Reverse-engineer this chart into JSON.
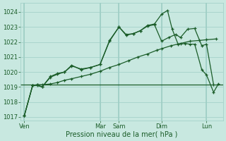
{
  "xlabel": "Pression niveau de la mer( hPa )",
  "bg_color": "#c8e8e0",
  "grid_color": "#9ecec5",
  "line_color": "#1a5c28",
  "tick_color": "#1a5c28",
  "ylim": [
    1016.75,
    1024.6
  ],
  "yticks": [
    1017,
    1018,
    1019,
    1020,
    1021,
    1022,
    1023,
    1024
  ],
  "x_tick_positions": [
    0,
    3.2,
    4.0,
    5.8,
    7.7
  ],
  "x_tick_labels": [
    "Ven",
    "Mar",
    "Sam",
    "Dim",
    "Lun"
  ],
  "vline_x": [
    0,
    3.2,
    4.0,
    5.8,
    7.7
  ],
  "hline_y": 1019.15,
  "line_straight_x": [
    0.0,
    0.35,
    0.55,
    0.75,
    1.1,
    1.4,
    1.7,
    2.0,
    2.4,
    2.8,
    3.2,
    3.6,
    4.0,
    4.4,
    4.8,
    5.2,
    5.6,
    5.8,
    6.2,
    6.6,
    7.0,
    7.4,
    7.7,
    8.1
  ],
  "line_straight_y": [
    1017.1,
    1019.1,
    1019.15,
    1019.15,
    1019.2,
    1019.3,
    1019.45,
    1019.55,
    1019.7,
    1019.85,
    1020.05,
    1020.3,
    1020.5,
    1020.75,
    1021.0,
    1021.2,
    1021.45,
    1021.55,
    1021.75,
    1021.9,
    1022.05,
    1022.1,
    1022.15,
    1022.2
  ],
  "line_mid_x": [
    0.0,
    0.35,
    0.55,
    0.75,
    1.1,
    1.4,
    1.7,
    2.0,
    2.4,
    2.8,
    3.2,
    3.6,
    4.0,
    4.3,
    4.6,
    4.9,
    5.2,
    5.5,
    5.8,
    6.1,
    6.4,
    6.6,
    6.9,
    7.2,
    7.5,
    7.7,
    8.0
  ],
  "line_mid_y": [
    1017.1,
    1019.1,
    1019.1,
    1019.0,
    1019.65,
    1019.85,
    1020.0,
    1020.4,
    1020.2,
    1020.3,
    1020.5,
    1022.05,
    1023.0,
    1022.5,
    1022.55,
    1022.75,
    1023.05,
    1023.15,
    1022.05,
    1022.3,
    1022.5,
    1022.3,
    1022.85,
    1022.9,
    1021.75,
    1021.85,
    1019.15
  ],
  "line_jagged_x": [
    0.0,
    0.35,
    0.55,
    0.75,
    1.1,
    1.4,
    1.7,
    2.0,
    2.4,
    2.8,
    3.2,
    3.6,
    4.0,
    4.3,
    4.6,
    4.9,
    5.2,
    5.5,
    5.8,
    6.05,
    6.25,
    6.5,
    6.8,
    7.0,
    7.2,
    7.5,
    7.7,
    8.0,
    8.2
  ],
  "line_jagged_y": [
    1017.1,
    1019.1,
    1019.15,
    1019.0,
    1019.7,
    1019.9,
    1020.0,
    1020.45,
    1020.15,
    1020.3,
    1020.5,
    1022.1,
    1023.0,
    1022.45,
    1022.55,
    1022.75,
    1023.1,
    1023.2,
    1023.85,
    1024.1,
    1022.85,
    1021.85,
    1021.9,
    1021.85,
    1021.85,
    1020.15,
    1019.8,
    1018.65,
    1019.2
  ]
}
